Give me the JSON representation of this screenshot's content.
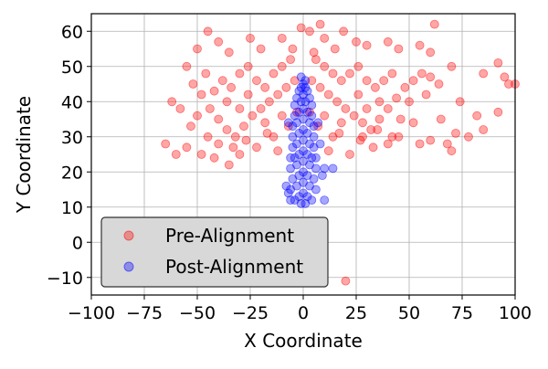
{
  "chart_data": {
    "type": "scatter",
    "title": "",
    "xlabel": "X Coordinate",
    "ylabel": "Y Coordinate",
    "xlim": [
      -100,
      100
    ],
    "ylim": [
      -15,
      65
    ],
    "xticks": [
      -100,
      -75,
      -50,
      -25,
      0,
      25,
      50,
      75,
      100
    ],
    "yticks": [
      -10,
      0,
      10,
      20,
      30,
      40,
      50,
      60
    ],
    "xtick_labels": [
      "−100",
      "−75",
      "−50",
      "−25",
      "0",
      "25",
      "50",
      "75",
      "100"
    ],
    "ytick_labels": [
      "−10",
      "0",
      "10",
      "20",
      "30",
      "40",
      "50",
      "60"
    ],
    "grid": true,
    "legend_position": "lower-left",
    "series": [
      {
        "name": "Pre-Alignment",
        "color": "#ff0000",
        "alpha": 0.35,
        "points": [
          [
            -1,
            61
          ],
          [
            3,
            60
          ],
          [
            8,
            62
          ],
          [
            19,
            60
          ],
          [
            62,
            62
          ],
          [
            -45,
            60
          ],
          [
            -25,
            58
          ],
          [
            -10,
            58
          ],
          [
            10,
            58
          ],
          [
            25,
            57
          ],
          [
            40,
            57
          ],
          [
            -40,
            57
          ],
          [
            -50,
            55
          ],
          [
            -35,
            54
          ],
          [
            -20,
            55
          ],
          [
            -5,
            55
          ],
          [
            5,
            54
          ],
          [
            15,
            55
          ],
          [
            30,
            56
          ],
          [
            45,
            55
          ],
          [
            55,
            56
          ],
          [
            60,
            54
          ],
          [
            70,
            50
          ],
          [
            85,
            48
          ],
          [
            92,
            51
          ],
          [
            95,
            47
          ],
          [
            100,
            45
          ],
          [
            -62,
            40
          ],
          [
            -65,
            28
          ],
          [
            -60,
            25
          ],
          [
            -55,
            27
          ],
          [
            -53,
            33
          ],
          [
            -48,
            25
          ],
          [
            -42,
            24
          ],
          [
            -35,
            22
          ],
          [
            -30,
            25
          ],
          [
            -22,
            27
          ],
          [
            -12,
            26
          ],
          [
            12,
            26
          ],
          [
            22,
            25
          ],
          [
            28,
            30
          ],
          [
            35,
            32
          ],
          [
            45,
            30
          ],
          [
            55,
            28
          ],
          [
            60,
            29
          ],
          [
            68,
            28
          ],
          [
            70,
            26
          ],
          [
            72,
            31
          ],
          [
            74,
            40
          ],
          [
            78,
            30
          ],
          [
            82,
            36
          ],
          [
            85,
            32
          ],
          [
            92,
            37
          ],
          [
            97,
            45
          ],
          [
            -55,
            50
          ],
          [
            -52,
            45
          ],
          [
            -48,
            42
          ],
          [
            -44,
            38
          ],
          [
            -40,
            35
          ],
          [
            -36,
            32
          ],
          [
            -32,
            30
          ],
          [
            -28,
            33
          ],
          [
            -24,
            36
          ],
          [
            -20,
            38
          ],
          [
            -16,
            40
          ],
          [
            -12,
            42
          ],
          [
            -8,
            44
          ],
          [
            -4,
            46
          ],
          [
            4,
            46
          ],
          [
            8,
            44
          ],
          [
            12,
            42
          ],
          [
            16,
            40
          ],
          [
            20,
            38
          ],
          [
            24,
            36
          ],
          [
            28,
            34
          ],
          [
            32,
            32
          ],
          [
            36,
            35
          ],
          [
            40,
            38
          ],
          [
            44,
            41
          ],
          [
            48,
            44
          ],
          [
            52,
            46
          ],
          [
            56,
            48
          ],
          [
            60,
            47
          ],
          [
            64,
            45
          ],
          [
            58,
            42
          ],
          [
            50,
            40
          ],
          [
            46,
            35
          ],
          [
            42,
            30
          ],
          [
            -46,
            48
          ],
          [
            -38,
            46
          ],
          [
            -34,
            44
          ],
          [
            -30,
            48
          ],
          [
            -26,
            50
          ],
          [
            -22,
            46
          ],
          [
            -18,
            44
          ],
          [
            -14,
            48
          ],
          [
            -10,
            50
          ],
          [
            -6,
            52
          ],
          [
            6,
            52
          ],
          [
            10,
            50
          ],
          [
            14,
            48
          ],
          [
            18,
            46
          ],
          [
            22,
            48
          ],
          [
            26,
            50
          ],
          [
            30,
            46
          ],
          [
            34,
            44
          ],
          [
            38,
            46
          ],
          [
            42,
            48
          ],
          [
            -42,
            43
          ],
          [
            -36,
            40
          ],
          [
            -30,
            38
          ],
          [
            -26,
            42
          ],
          [
            -18,
            34
          ],
          [
            -14,
            30
          ],
          [
            -10,
            36
          ],
          [
            10,
            36
          ],
          [
            14,
            30
          ],
          [
            18,
            34
          ],
          [
            26,
            42
          ],
          [
            30,
            38
          ],
          [
            36,
            40
          ],
          [
            -58,
            38
          ],
          [
            -50,
            36
          ],
          [
            -45,
            30
          ],
          [
            -40,
            28
          ],
          [
            -33,
            27
          ],
          [
            -27,
            29
          ],
          [
            -17,
            31
          ],
          [
            17,
            31
          ],
          [
            27,
            29
          ],
          [
            33,
            27
          ],
          [
            40,
            28
          ],
          [
            52,
            34
          ],
          [
            65,
            35
          ],
          [
            -3,
            37
          ],
          [
            3,
            37
          ],
          [
            -7,
            33
          ],
          [
            7,
            33
          ],
          [
            20,
            -11
          ]
        ]
      },
      {
        "name": "Post-Alignment",
        "color": "#0000ff",
        "alpha": 0.35,
        "points": [
          [
            0,
            45
          ],
          [
            -1,
            44
          ],
          [
            1,
            44
          ],
          [
            -2,
            43
          ],
          [
            2,
            43
          ],
          [
            0,
            42
          ],
          [
            -3,
            41
          ],
          [
            3,
            41
          ],
          [
            -1,
            40
          ],
          [
            1,
            40
          ],
          [
            -4,
            39
          ],
          [
            4,
            39
          ],
          [
            0,
            38
          ],
          [
            -2,
            37
          ],
          [
            2,
            37
          ],
          [
            -4,
            36
          ],
          [
            4,
            36
          ],
          [
            0,
            35
          ],
          [
            -3,
            34
          ],
          [
            3,
            34
          ],
          [
            -5,
            33
          ],
          [
            5,
            33
          ],
          [
            0,
            32
          ],
          [
            -2,
            31
          ],
          [
            2,
            31
          ],
          [
            -5,
            30
          ],
          [
            5,
            30
          ],
          [
            0,
            29
          ],
          [
            -3,
            28
          ],
          [
            3,
            28
          ],
          [
            -5,
            27
          ],
          [
            5,
            27
          ],
          [
            0,
            26
          ],
          [
            -2,
            25
          ],
          [
            2,
            25
          ],
          [
            -4,
            24
          ],
          [
            4,
            24
          ],
          [
            0,
            23
          ],
          [
            -3,
            22
          ],
          [
            3,
            22
          ],
          [
            -6,
            21
          ],
          [
            6,
            21
          ],
          [
            0,
            20
          ],
          [
            -2,
            19
          ],
          [
            2,
            19
          ],
          [
            -5,
            18
          ],
          [
            5,
            18
          ],
          [
            0,
            17
          ],
          [
            -3,
            16
          ],
          [
            3,
            16
          ],
          [
            -6,
            15
          ],
          [
            6,
            15
          ],
          [
            0,
            14
          ],
          [
            -2,
            13
          ],
          [
            2,
            13
          ],
          [
            -4,
            12
          ],
          [
            4,
            12
          ],
          [
            -1,
            11
          ],
          [
            1,
            11
          ],
          [
            8,
            28
          ],
          [
            10,
            21
          ],
          [
            14,
            21
          ],
          [
            9,
            19
          ],
          [
            10,
            12
          ],
          [
            -8,
            16
          ],
          [
            -7,
            14
          ],
          [
            -6,
            12
          ],
          [
            6,
            24
          ],
          [
            -6,
            24
          ],
          [
            7,
            34
          ],
          [
            -7,
            34
          ],
          [
            1,
            46
          ],
          [
            -1,
            47
          ]
        ]
      }
    ]
  }
}
